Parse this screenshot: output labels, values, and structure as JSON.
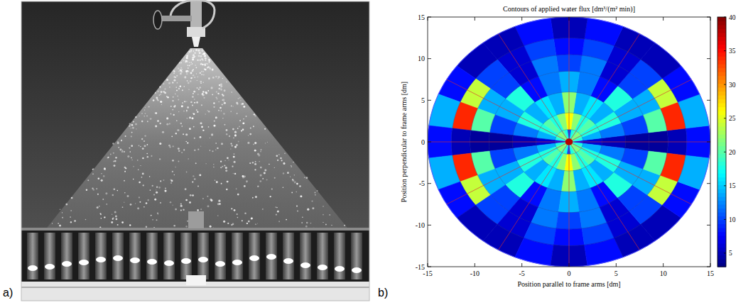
{
  "panel_labels": [
    "a)",
    "b)"
  ],
  "chart_data": {
    "type": "polar_heatmap",
    "title": "Contours of applied water flux [dm³/(m² min)]",
    "x_label": "Position parallel to frame arms [dm]",
    "y_label": "Position perpendicular to frame arms [dm]",
    "xlim": [
      -15,
      15
    ],
    "ylim": [
      -15,
      15
    ],
    "xticks": [
      -15,
      -10,
      -5,
      0,
      5,
      10,
      15
    ],
    "yticks": [
      -15,
      -10,
      -5,
      0,
      5,
      10,
      15
    ],
    "grid": true,
    "radii": [
      0,
      1.5,
      3.5,
      6,
      8.5,
      10.5,
      12.5,
      15
    ],
    "angles": [
      0,
      15,
      30,
      45,
      60,
      75,
      90,
      105,
      120,
      135,
      150,
      165,
      180,
      195,
      210,
      225,
      240,
      255,
      270,
      285,
      300,
      315,
      330,
      345
    ],
    "cells": [
      [
        8,
        18,
        20,
        22,
        20,
        18,
        10,
        18,
        20,
        22,
        20,
        18,
        8,
        18,
        20,
        22,
        20,
        18,
        10,
        18,
        20,
        22,
        20,
        18
      ],
      [
        6,
        14,
        18,
        20,
        18,
        22,
        26,
        22,
        18,
        20,
        18,
        14,
        6,
        14,
        18,
        20,
        18,
        22,
        26,
        22,
        18,
        20,
        18,
        14
      ],
      [
        5,
        12,
        18,
        14,
        16,
        14,
        22,
        14,
        16,
        14,
        18,
        12,
        5,
        12,
        18,
        14,
        16,
        14,
        22,
        14,
        16,
        14,
        18,
        12
      ],
      [
        4,
        10,
        14,
        18,
        8,
        12,
        14,
        12,
        8,
        18,
        14,
        10,
        4,
        10,
        14,
        18,
        8,
        12,
        14,
        12,
        8,
        18,
        14,
        10
      ],
      [
        4,
        20,
        14,
        10,
        6,
        12,
        10,
        12,
        6,
        10,
        14,
        20,
        4,
        20,
        14,
        10,
        6,
        12,
        10,
        12,
        6,
        10,
        14,
        20
      ],
      [
        5,
        34,
        24,
        10,
        6,
        10,
        8,
        10,
        6,
        10,
        24,
        34,
        5,
        34,
        24,
        10,
        6,
        10,
        8,
        10,
        6,
        10,
        24,
        34
      ],
      [
        8,
        14,
        8,
        5,
        5,
        8,
        5,
        8,
        5,
        5,
        8,
        14,
        8,
        14,
        8,
        5,
        5,
        8,
        5,
        8,
        5,
        5,
        8,
        14
      ]
    ],
    "center_value": 38,
    "colorbar_range": [
      3,
      40
    ],
    "colorbar_ticks": [
      5,
      10,
      15,
      20,
      25,
      30,
      35,
      40
    ]
  }
}
